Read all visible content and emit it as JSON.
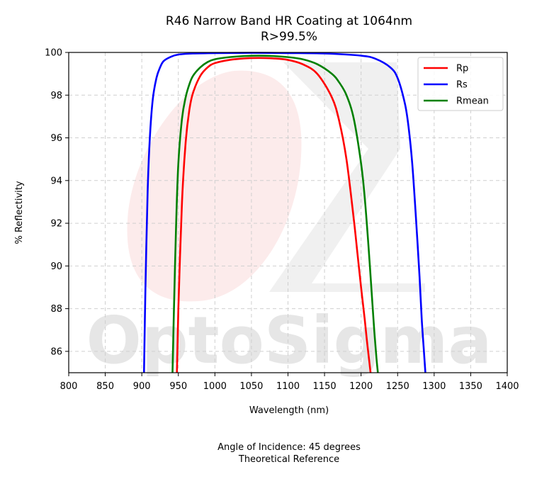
{
  "chart_data": {
    "type": "line",
    "title_line1": "R46 Narrow Band HR Coating at 1064nm",
    "title_line2": "R>99.5%",
    "xlabel": "Wavelength (nm)",
    "ylabel": "% Reflectivity",
    "xlim": [
      800,
      1400
    ],
    "ylim": [
      85,
      100
    ],
    "xticks": [
      800,
      850,
      900,
      950,
      1000,
      1050,
      1100,
      1150,
      1200,
      1250,
      1300,
      1350,
      1400
    ],
    "yticks": [
      86,
      88,
      90,
      92,
      94,
      96,
      98,
      100
    ],
    "grid": true,
    "legend_position": "top-right",
    "series": [
      {
        "name": "Rp",
        "color": "#ff0000",
        "x": [
          948,
          950,
          955,
          960,
          965,
          970,
          980,
          990,
          1000,
          1020,
          1040,
          1060,
          1080,
          1100,
          1120,
          1140,
          1160,
          1170,
          1180,
          1190,
          1195,
          1200,
          1205,
          1208,
          1211,
          1213
        ],
        "y": [
          85.0,
          88.0,
          93.0,
          95.8,
          97.3,
          98.1,
          98.9,
          99.3,
          99.5,
          99.65,
          99.72,
          99.74,
          99.72,
          99.65,
          99.45,
          99.0,
          97.9,
          96.8,
          95.0,
          92.2,
          90.6,
          89.0,
          87.5,
          86.5,
          85.6,
          85.0
        ]
      },
      {
        "name": "Rs",
        "color": "#0000ff",
        "x": [
          903,
          905,
          908,
          911,
          915,
          920,
          925,
          930,
          940,
          950,
          970,
          1000,
          1050,
          1100,
          1150,
          1200,
          1220,
          1240,
          1250,
          1260,
          1265,
          1270,
          1275,
          1280,
          1283,
          1286,
          1288
        ],
        "y": [
          85.0,
          89.0,
          93.5,
          96.0,
          97.8,
          98.8,
          99.3,
          99.6,
          99.8,
          99.9,
          99.95,
          99.97,
          99.98,
          99.97,
          99.95,
          99.85,
          99.7,
          99.3,
          98.8,
          97.6,
          96.5,
          94.8,
          92.3,
          89.5,
          87.5,
          86.0,
          85.0
        ]
      },
      {
        "name": "Rmean",
        "color": "#008000",
        "x": [
          942,
          944,
          947,
          950,
          955,
          960,
          965,
          970,
          980,
          990,
          1000,
          1020,
          1040,
          1060,
          1080,
          1100,
          1120,
          1140,
          1160,
          1170,
          1180,
          1190,
          1200,
          1205,
          1210,
          1215,
          1218,
          1221,
          1223
        ],
        "y": [
          85.0,
          88.0,
          92.0,
          94.8,
          96.9,
          97.9,
          98.5,
          98.9,
          99.3,
          99.55,
          99.68,
          99.78,
          99.83,
          99.85,
          99.83,
          99.78,
          99.68,
          99.45,
          99.0,
          98.6,
          98.0,
          96.9,
          94.8,
          93.2,
          91.0,
          88.5,
          87.0,
          85.7,
          85.0
        ]
      }
    ],
    "footnote_line1": "Angle of Incidence: 45 degrees",
    "footnote_line2": "Theoretical Reference"
  },
  "watermark": {
    "text": "OptoSigma",
    "logo_color": "#fbe4e4",
    "logo_shape_color": "#ebebeb"
  }
}
